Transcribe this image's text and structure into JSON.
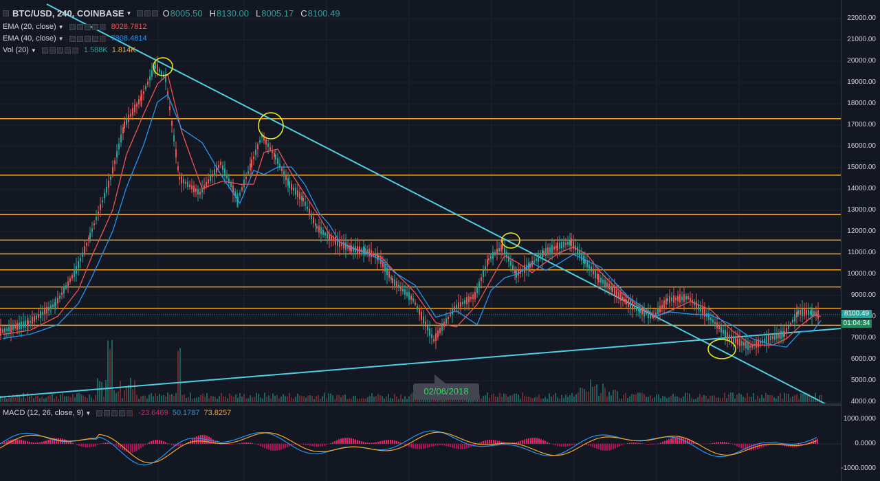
{
  "symbol": {
    "title": "BTC/USD, 240, COINBASE",
    "ohlc": [
      {
        "label": "O",
        "value": "8005.50"
      },
      {
        "label": "H",
        "value": "8130.00"
      },
      {
        "label": "L",
        "value": "8005.17"
      },
      {
        "label": "C",
        "value": "8100.49"
      }
    ]
  },
  "indicators": {
    "ema20": {
      "label": "EMA (20, close)",
      "value": "8028.7812",
      "color": "#ef5350"
    },
    "ema40": {
      "label": "EMA (40, close)",
      "value": "7808.4814",
      "color": "#2196f3"
    },
    "vol": {
      "label": "Vol (20)",
      "v1": "1.588K",
      "v2": "1.814K"
    },
    "macd": {
      "label": "MACD (12, 26, close, 9)",
      "hist": "-23.6469",
      "macd": "50.1787",
      "signal": "73.8257"
    }
  },
  "price_axis": {
    "ticks": [
      "22000.00",
      "21000.00",
      "20000.00",
      "19000.00",
      "18000.00",
      "17000.00",
      "16000.00",
      "15000.00",
      "14000.00",
      "13000.00",
      "12000.00",
      "11000.00",
      "10000.00",
      "9000.00",
      "8000.00",
      "7000.00",
      "6000.00",
      "5000.00",
      "4000.00"
    ],
    "last_price": "8100.49",
    "countdown": "01:04:34"
  },
  "macd_axis": {
    "ticks": [
      "1000.0000",
      "0.0000",
      "-1000.0000"
    ]
  },
  "date_bubble": "02/06/2018",
  "colors": {
    "background": "#131722",
    "up": "#26a69a",
    "down": "#ef5350",
    "horizontal_levels": "#f5a623",
    "trendlines": "#4dd0e1",
    "annotations": "#f1f10d"
  },
  "horizontal_levels": [
    17300,
    14650,
    12800,
    11600,
    10950,
    10200,
    9400,
    8400,
    7600
  ],
  "chart_data": {
    "type": "line",
    "series": [
      {
        "name": "BTC/USD",
        "x": [
          0,
          40,
          80,
          110,
          130,
          160,
          180,
          205,
          225,
          240,
          260,
          290,
          320,
          345,
          365,
          380,
          400,
          420,
          440,
          460,
          475,
          490,
          510,
          530,
          550,
          570,
          600,
          630,
          660,
          690,
          710,
          730,
          750,
          770,
          790,
          810,
          830,
          850,
          870,
          890,
          910,
          930,
          950,
          970,
          1000,
          1030,
          1060,
          1090,
          1120,
          1140,
          1160,
          1180,
          1190
        ],
        "y": [
          7300,
          7700,
          8600,
          10200,
          11800,
          14500,
          17000,
          18300,
          19800,
          19200,
          14500,
          13800,
          15200,
          13500,
          15200,
          16500,
          15500,
          14200,
          13500,
          12200,
          11800,
          11500,
          11200,
          11100,
          10800,
          9700,
          8800,
          6900,
          8400,
          9000,
          10700,
          11300,
          10000,
          10400,
          11000,
          11300,
          11500,
          10600,
          9800,
          9300,
          8700,
          8300,
          8000,
          8800,
          8900,
          8000,
          7000,
          6600,
          7000,
          7200,
          8200,
          8200,
          8100
        ]
      },
      {
        "name": "EMA (20, close)"
      },
      {
        "name": "EMA (40, close)"
      }
    ]
  }
}
